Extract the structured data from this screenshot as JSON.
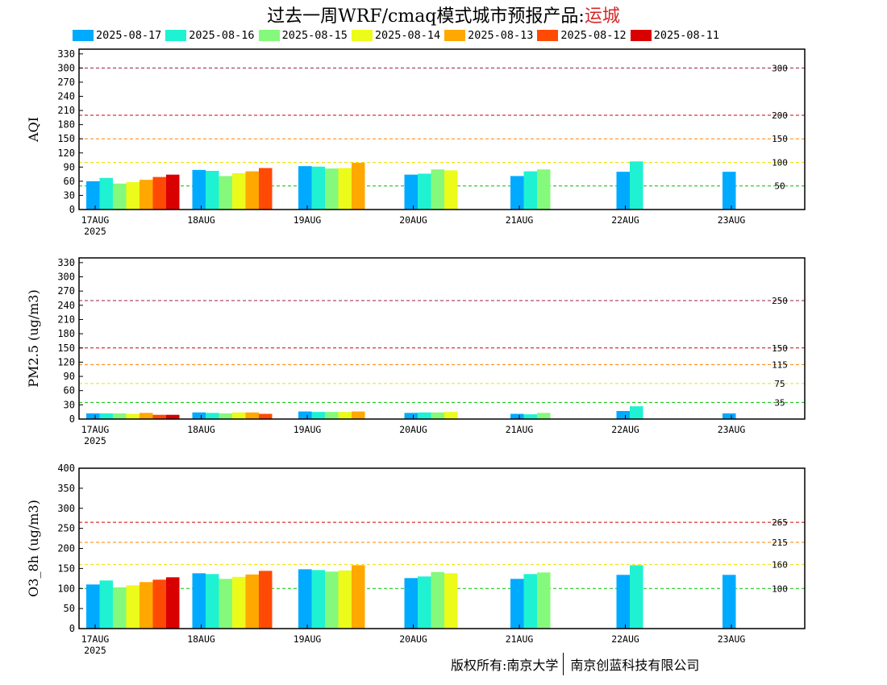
{
  "title": {
    "prefix": "过去一周WRF/cmaq模式城市预报产品:",
    "city": "运城"
  },
  "colors": {
    "runs": [
      "#00aaff",
      "#1ef2d2",
      "#85f97b",
      "#ecfb1a",
      "#ffa800",
      "#ff4a05",
      "#d90000"
    ]
  },
  "legend": [
    "2025-08-17",
    "2025-08-16",
    "2025-08-15",
    "2025-08-14",
    "2025-08-13",
    "2025-08-12",
    "2025-08-11"
  ],
  "footer": {
    "left": "版权所有:南京大学",
    "right": "南京创蓝科技有限公司"
  },
  "chart_data": [
    {
      "type": "bar",
      "ylabel": "AQI",
      "ylim": [
        0,
        340
      ],
      "yticks": [
        0,
        30,
        60,
        90,
        120,
        150,
        180,
        210,
        240,
        270,
        300,
        330
      ],
      "categories": [
        "17AUG",
        "18AUG",
        "19AUG",
        "20AUG",
        "21AUG",
        "22AUG",
        "23AUG"
      ],
      "year_label": "2025",
      "grid": false,
      "thresholds": [
        {
          "value": 300,
          "label": "300",
          "color": "#9b1b4a"
        },
        {
          "value": 200,
          "label": "200",
          "color": "#d00000"
        },
        {
          "value": 150,
          "label": "150",
          "color": "#ff8000"
        },
        {
          "value": 100,
          "label": "100",
          "color": "#f0e000"
        },
        {
          "value": 50,
          "label": "50",
          "color": "#00c000"
        }
      ],
      "series": [
        {
          "name": "2025-08-17",
          "values": [
            60,
            84,
            92,
            74,
            71,
            80,
            80
          ]
        },
        {
          "name": "2025-08-16",
          "values": [
            67,
            82,
            91,
            76,
            81,
            102,
            null
          ]
        },
        {
          "name": "2025-08-15",
          "values": [
            55,
            71,
            87,
            85,
            85,
            null,
            null
          ]
        },
        {
          "name": "2025-08-14",
          "values": [
            58,
            77,
            88,
            83,
            null,
            null,
            null
          ]
        },
        {
          "name": "2025-08-13",
          "values": [
            63,
            81,
            99,
            null,
            null,
            null,
            null
          ]
        },
        {
          "name": "2025-08-12",
          "values": [
            69,
            88,
            null,
            null,
            null,
            null,
            null
          ]
        },
        {
          "name": "2025-08-11",
          "values": [
            74,
            null,
            null,
            null,
            null,
            null,
            null
          ]
        }
      ]
    },
    {
      "type": "bar",
      "ylabel": "PM2.5 (ug/m3)",
      "ylim": [
        0,
        340
      ],
      "yticks": [
        0,
        30,
        60,
        90,
        120,
        150,
        180,
        210,
        240,
        270,
        300,
        330
      ],
      "categories": [
        "17AUG",
        "18AUG",
        "19AUG",
        "20AUG",
        "21AUG",
        "22AUG",
        "23AUG"
      ],
      "year_label": "2025",
      "grid": false,
      "thresholds": [
        {
          "value": 250,
          "label": "250",
          "color": "#9b1b4a"
        },
        {
          "value": 150,
          "label": "150",
          "color": "#d00000"
        },
        {
          "value": 115,
          "label": "115",
          "color": "#ff8000"
        },
        {
          "value": 75,
          "label": "75",
          "color": "#f0e000"
        },
        {
          "value": 35,
          "label": "35",
          "color": "#00c000"
        }
      ],
      "series": [
        {
          "name": "2025-08-17",
          "values": [
            12,
            14,
            16,
            13,
            11,
            17,
            12
          ]
        },
        {
          "name": "2025-08-16",
          "values": [
            12,
            13,
            15,
            14,
            10,
            27,
            null
          ]
        },
        {
          "name": "2025-08-15",
          "values": [
            12,
            12,
            15,
            14,
            13,
            null,
            null
          ]
        },
        {
          "name": "2025-08-14",
          "values": [
            11,
            14,
            15,
            15,
            null,
            null,
            null
          ]
        },
        {
          "name": "2025-08-13",
          "values": [
            13,
            14,
            16,
            null,
            null,
            null,
            null
          ]
        },
        {
          "name": "2025-08-12",
          "values": [
            9,
            11,
            null,
            null,
            null,
            null,
            null
          ]
        },
        {
          "name": "2025-08-11",
          "values": [
            9,
            null,
            null,
            null,
            null,
            null,
            null
          ]
        }
      ]
    },
    {
      "type": "bar",
      "ylabel": "O3_8h (ug/m3)",
      "ylim": [
        0,
        400
      ],
      "yticks": [
        0,
        50,
        100,
        150,
        200,
        250,
        300,
        350,
        400
      ],
      "categories": [
        "17AUG",
        "18AUG",
        "19AUG",
        "20AUG",
        "21AUG",
        "22AUG",
        "23AUG"
      ],
      "year_label": "2025",
      "grid": false,
      "thresholds": [
        {
          "value": 265,
          "label": "265",
          "color": "#d00000"
        },
        {
          "value": 215,
          "label": "215",
          "color": "#ff8000"
        },
        {
          "value": 160,
          "label": "160",
          "color": "#f0e000"
        },
        {
          "value": 100,
          "label": "100",
          "color": "#00c000"
        }
      ],
      "series": [
        {
          "name": "2025-08-17",
          "values": [
            110,
            138,
            148,
            126,
            124,
            134,
            134
          ]
        },
        {
          "name": "2025-08-16",
          "values": [
            120,
            136,
            146,
            130,
            136,
            158,
            null
          ]
        },
        {
          "name": "2025-08-15",
          "values": [
            103,
            124,
            142,
            141,
            140,
            null,
            null
          ]
        },
        {
          "name": "2025-08-14",
          "values": [
            108,
            129,
            145,
            138,
            null,
            null,
            null
          ]
        },
        {
          "name": "2025-08-13",
          "values": [
            116,
            135,
            158,
            null,
            null,
            null,
            null
          ]
        },
        {
          "name": "2025-08-12",
          "values": [
            122,
            144,
            null,
            null,
            null,
            null,
            null
          ]
        },
        {
          "name": "2025-08-11",
          "values": [
            128,
            null,
            null,
            null,
            null,
            null,
            null
          ]
        }
      ]
    }
  ]
}
